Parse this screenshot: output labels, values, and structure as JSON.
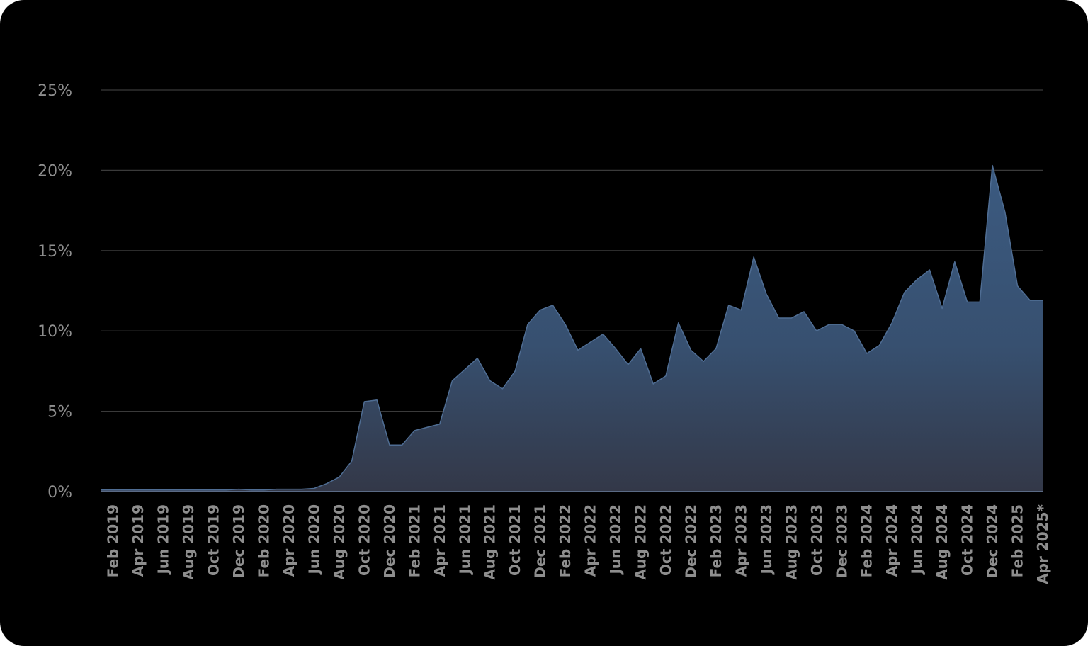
{
  "chart_data": {
    "type": "area",
    "title": "",
    "xlabel": "",
    "ylabel": "",
    "ylim": [
      0,
      25
    ],
    "y_tick_values": [
      0,
      5,
      10,
      15,
      20,
      25
    ],
    "y_tick_labels": [
      "0%",
      "5%",
      "10%",
      "15%",
      "20%",
      "25%"
    ],
    "grid": true,
    "legend": "none",
    "x_tick_labels": [
      "Feb 2019",
      "Apr 2019",
      "Jun 2019",
      "Aug 2019",
      "Oct 2019",
      "Dec 2019",
      "Feb 2020",
      "Apr 2020",
      "Jun 2020",
      "Aug 2020",
      "Oct 2020",
      "Dec 2020",
      "Feb 2021",
      "Apr 2021",
      "Jun 2021",
      "Aug 2021",
      "Oct 2021",
      "Dec 2021",
      "Feb 2022",
      "Apr 2022",
      "Jun 2022",
      "Aug 2022",
      "Oct 2022",
      "Dec 2022",
      "Feb 2023",
      "Apr 2023",
      "Jun 2023",
      "Aug 2023",
      "Oct 2023",
      "Dec 2023",
      "Feb 2024",
      "Apr 2024",
      "Jun 2024",
      "Aug 2024",
      "Oct 2024",
      "Dec 2024",
      "Feb 2025",
      "Apr 2025*"
    ],
    "x": [
      "Jan 2019",
      "Feb 2019",
      "Mar 2019",
      "Apr 2019",
      "May 2019",
      "Jun 2019",
      "Jul 2019",
      "Aug 2019",
      "Sep 2019",
      "Oct 2019",
      "Nov 2019",
      "Dec 2019",
      "Jan 2020",
      "Feb 2020",
      "Mar 2020",
      "Apr 2020",
      "May 2020",
      "Jun 2020",
      "Jul 2020",
      "Aug 2020",
      "Sep 2020",
      "Oct 2020",
      "Nov 2020",
      "Dec 2020",
      "Jan 2021",
      "Feb 2021",
      "Mar 2021",
      "Apr 2021",
      "May 2021",
      "Jun 2021",
      "Jul 2021",
      "Aug 2021",
      "Sep 2021",
      "Oct 2021",
      "Nov 2021",
      "Dec 2021",
      "Jan 2022",
      "Feb 2022",
      "Mar 2022",
      "Apr 2022",
      "May 2022",
      "Jun 2022",
      "Jul 2022",
      "Aug 2022",
      "Sep 2022",
      "Oct 2022",
      "Nov 2022",
      "Dec 2022",
      "Jan 2023",
      "Feb 2023",
      "Mar 2023",
      "Apr 2023",
      "May 2023",
      "Jun 2023",
      "Jul 2023",
      "Aug 2023",
      "Sep 2023",
      "Oct 2023",
      "Nov 2023",
      "Dec 2023",
      "Jan 2024",
      "Feb 2024",
      "Mar 2024",
      "Apr 2024",
      "May 2024",
      "Jun 2024",
      "Jul 2024",
      "Aug 2024",
      "Sep 2024",
      "Oct 2024",
      "Nov 2024",
      "Dec 2024",
      "Jan 2025",
      "Feb 2025",
      "Mar 2025",
      "Apr 2025*"
    ],
    "series": [
      {
        "values": [
          0.1,
          0.1,
          0.1,
          0.1,
          0.1,
          0.1,
          0.1,
          0.1,
          0.1,
          0.1,
          0.1,
          0.15,
          0.1,
          0.1,
          0.15,
          0.15,
          0.15,
          0.2,
          0.5,
          0.9,
          1.9,
          5.6,
          5.7,
          2.9,
          2.9,
          3.8,
          4.0,
          4.2,
          6.9,
          7.6,
          8.3,
          6.9,
          6.4,
          7.5,
          10.4,
          11.3,
          11.6,
          10.4,
          8.8,
          9.3,
          9.8,
          8.9,
          7.9,
          8.9,
          6.7,
          7.2,
          10.5,
          8.8,
          8.1,
          8.9,
          11.6,
          11.3,
          14.6,
          12.3,
          10.8,
          10.8,
          11.2,
          10.0,
          10.4,
          10.4,
          10.0,
          8.6,
          9.1,
          10.5,
          12.4,
          13.2,
          13.8,
          11.4,
          14.3,
          11.8,
          11.8,
          20.3,
          17.4,
          12.8,
          11.9,
          11.9
        ]
      }
    ],
    "fill_color_top": "#3b5a80",
    "fill_color_bottom": "#333848",
    "line_color": "#4f6d93",
    "gridline_color": "#3a3a3a",
    "tick_label_color": "#8e8e8e",
    "background": "#000000"
  }
}
